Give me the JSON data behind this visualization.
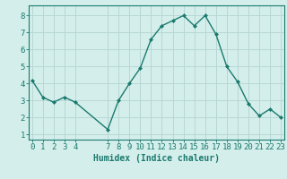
{
  "x": [
    0,
    1,
    2,
    3,
    4,
    7,
    8,
    9,
    10,
    11,
    12,
    13,
    14,
    15,
    16,
    17,
    18,
    19,
    20,
    21,
    22,
    23
  ],
  "y": [
    4.2,
    3.2,
    2.9,
    3.2,
    2.9,
    1.3,
    3.0,
    4.0,
    4.9,
    6.6,
    7.4,
    7.7,
    8.0,
    7.4,
    8.0,
    6.9,
    5.0,
    4.1,
    2.8,
    2.1,
    2.5,
    2.0
  ],
  "line_color": "#1a7a6e",
  "marker_color": "#1a7a6e",
  "bg_color": "#d4eeeb",
  "grid_color": "#b8d8d5",
  "xlabel": "Humidex (Indice chaleur)",
  "xticks": [
    0,
    1,
    2,
    3,
    4,
    7,
    8,
    9,
    10,
    11,
    12,
    13,
    14,
    15,
    16,
    17,
    18,
    19,
    20,
    21,
    22,
    23
  ],
  "yticks": [
    1,
    2,
    3,
    4,
    5,
    6,
    7,
    8
  ],
  "ylim": [
    0.7,
    8.6
  ],
  "xlim": [
    -0.3,
    23.3
  ],
  "xlabel_fontsize": 7,
  "tick_fontsize": 6.5,
  "tick_color": "#1a7a6e",
  "axis_color": "#1a7a6e",
  "linewidth": 1.0,
  "markersize": 2.0
}
